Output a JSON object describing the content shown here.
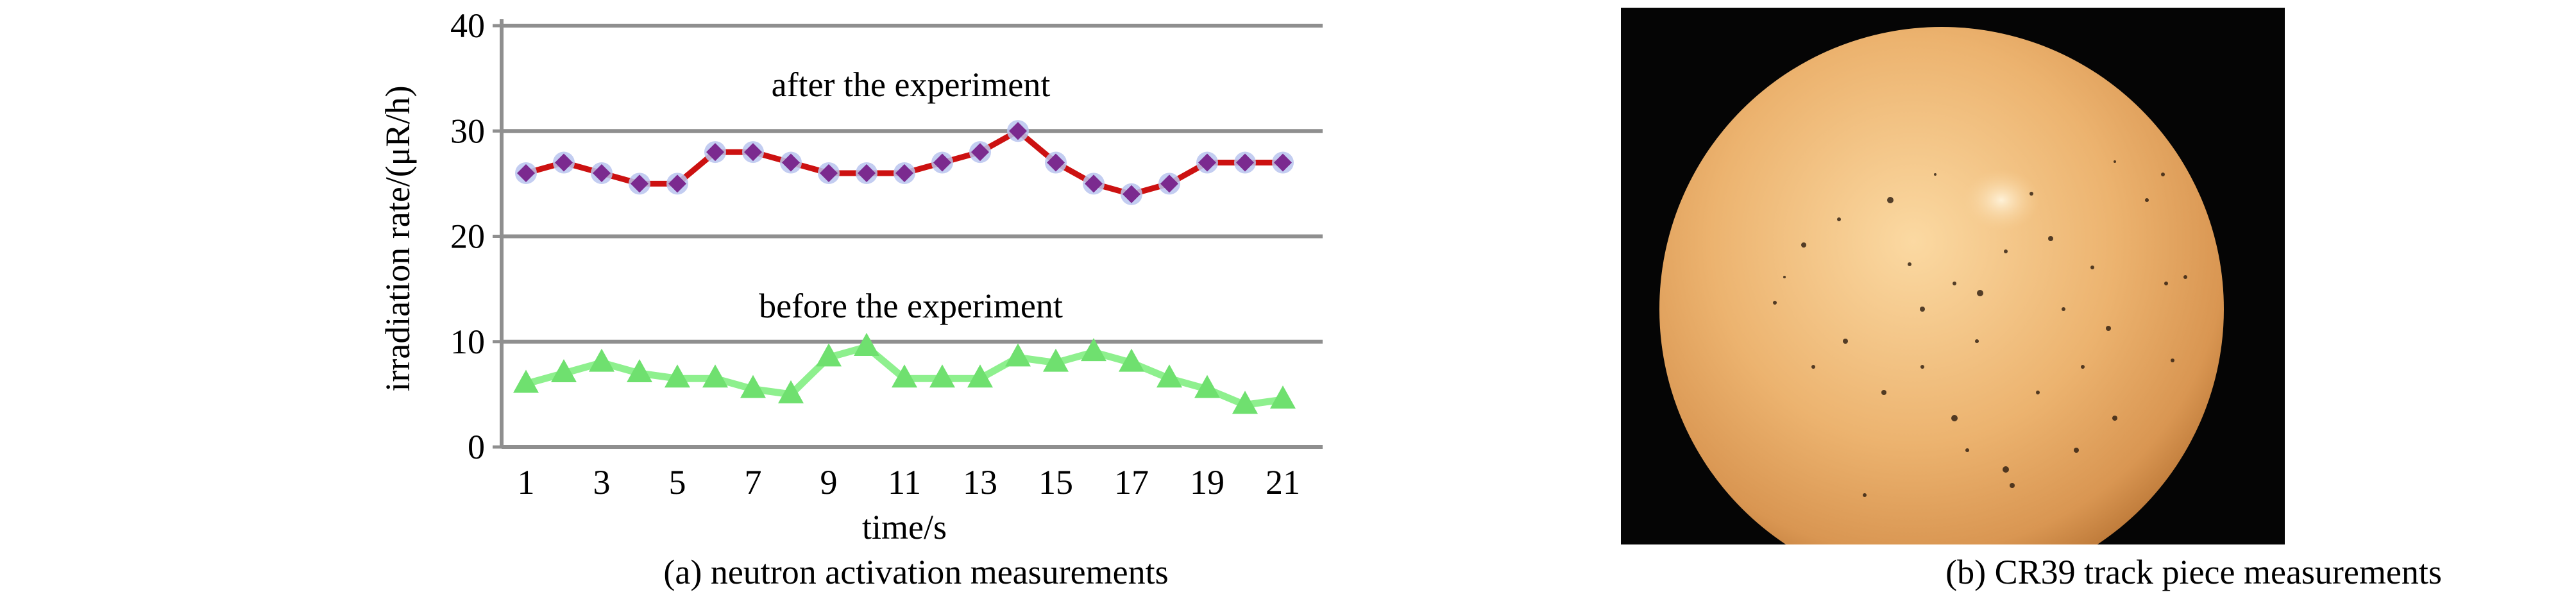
{
  "chart_data": {
    "type": "line",
    "x": [
      1,
      2,
      3,
      4,
      5,
      6,
      7,
      8,
      9,
      10,
      11,
      12,
      13,
      14,
      15,
      16,
      17,
      18,
      19,
      20,
      21
    ],
    "xticks": [
      "1",
      "3",
      "5",
      "7",
      "9",
      "11",
      "13",
      "15",
      "17",
      "19",
      "21"
    ],
    "xlabel": "time/s",
    "ylabel": "irradiation rate/(μR/h)",
    "ylim": [
      0,
      40
    ],
    "yticks": [
      "0",
      "10",
      "20",
      "30",
      "40"
    ],
    "grid": "horizontal",
    "series": [
      {
        "values": [
          26,
          27,
          26,
          25,
          25,
          28,
          28,
          27,
          26,
          26,
          26,
          27,
          28,
          30,
          27,
          25,
          24,
          25,
          27,
          27,
          27
        ],
        "color": "#cc1111",
        "marker": "diamond",
        "marker_color": "#7b2a8f",
        "halo_color": "#b9c4ef"
      },
      {
        "values": [
          6,
          7,
          8,
          7,
          6.5,
          6.5,
          5.5,
          5,
          8.5,
          9.5,
          6.5,
          6.5,
          6.5,
          8.5,
          8,
          9,
          8,
          6.5,
          5.5,
          4,
          4.5
        ],
        "color": "#8ef08e",
        "marker": "triangle",
        "marker_color": "#6fe06f"
      }
    ],
    "annotations": [
      {
        "text": "after the experiment",
        "series_index": 0
      },
      {
        "text": "before the experiment",
        "series_index": 1
      }
    ]
  },
  "captions": {
    "a": "(a) neutron activation measurements",
    "b": "(b) CR39 track piece measurements"
  },
  "photo": {
    "subject": "CR39 track piece under microscope",
    "background_color": "#050505",
    "disc_color": "#ecb36f",
    "disc_highlight_color": "#f8d29a",
    "track_color": "#2a1a0e"
  }
}
